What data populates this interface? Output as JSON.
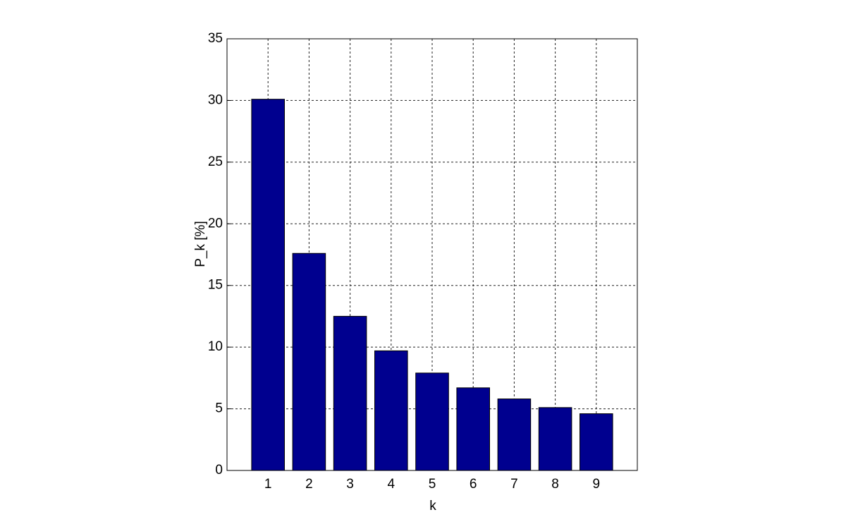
{
  "chart_data": {
    "type": "bar",
    "x": [
      1,
      2,
      3,
      4,
      5,
      6,
      7,
      8,
      9
    ],
    "values": [
      30.1,
      17.6,
      12.5,
      9.7,
      7.9,
      6.7,
      5.8,
      5.1,
      4.6
    ],
    "color": "#00008f",
    "xlabel": "k",
    "ylabel": "P_k [%]",
    "xlim": [
      0,
      10
    ],
    "xticks": [
      1,
      2,
      3,
      4,
      5,
      6,
      7,
      8,
      9
    ],
    "ylim": [
      0,
      35
    ],
    "yticks": [
      0,
      5,
      10,
      15,
      20,
      25,
      30,
      35
    ],
    "grid": true
  }
}
